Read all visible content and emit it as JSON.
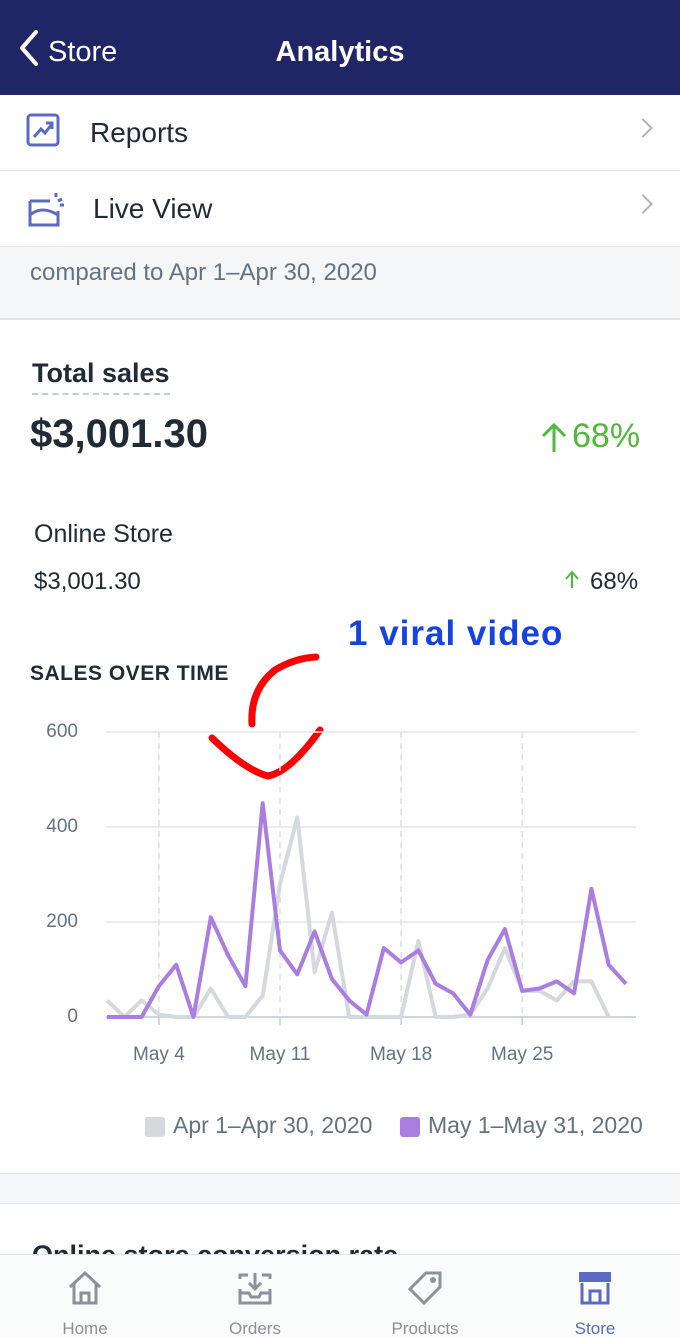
{
  "header": {
    "back": "Store",
    "title": "Analytics"
  },
  "menu": [
    {
      "label": "Reports"
    },
    {
      "label": "Live View"
    }
  ],
  "comparison": "compared to Apr 1–Apr 30, 2020",
  "total_sales": {
    "title": "Total sales",
    "amount": "$3,001.30",
    "change": "68%",
    "channel": {
      "name": "Online Store",
      "amount": "$3,001.30",
      "change": "68%"
    }
  },
  "annotation": "1 viral video",
  "chart_data": {
    "type": "line",
    "title": "SALES OVER TIME",
    "categories": [
      null,
      null,
      null,
      "May 4",
      null,
      null,
      null,
      null,
      null,
      null,
      "May 11",
      null,
      null,
      null,
      null,
      null,
      null,
      "May 18",
      null,
      null,
      null,
      null,
      null,
      null,
      "May 25",
      null,
      null,
      null,
      null,
      null,
      null
    ],
    "series": [
      {
        "name": "Apr 1–Apr 30, 2020",
        "color": "#d5d8dc",
        "values": [
          35,
          0,
          35,
          5,
          0,
          0,
          60,
          0,
          0,
          45,
          280,
          420,
          95,
          220,
          0,
          0,
          0,
          0,
          160,
          0,
          0,
          5,
          60,
          145,
          55,
          55,
          35,
          75,
          75,
          0,
          null
        ]
      },
      {
        "name": "May 1–May 31, 2020",
        "color": "#a97ee0",
        "values": [
          0,
          0,
          0,
          65,
          110,
          0,
          210,
          130,
          65,
          450,
          140,
          90,
          180,
          80,
          35,
          5,
          145,
          115,
          140,
          70,
          50,
          5,
          120,
          185,
          55,
          60,
          75,
          50,
          270,
          110,
          70
        ]
      }
    ],
    "ylim": [
      0,
      600
    ],
    "yticks": [
      0,
      200,
      400,
      600
    ],
    "grid": true,
    "legend": "bottom"
  },
  "next_card_title": "Online store conversion rate",
  "tab_bar": [
    {
      "label": "Home"
    },
    {
      "label": "Orders"
    },
    {
      "label": "Products"
    },
    {
      "label": "Store"
    }
  ]
}
